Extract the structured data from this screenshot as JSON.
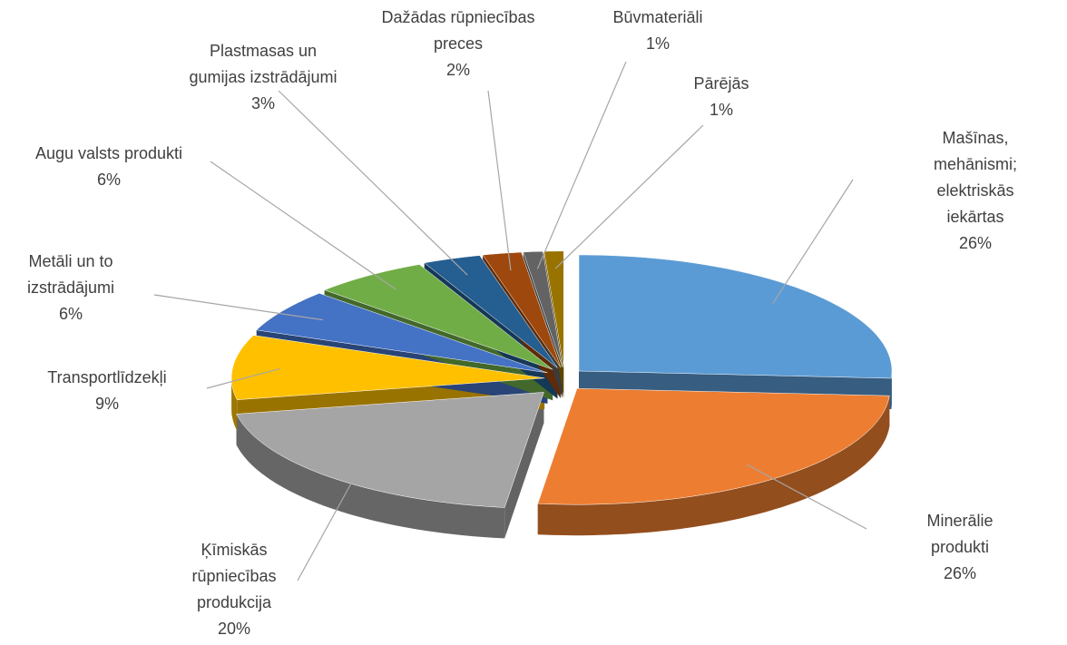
{
  "chart_data": {
    "type": "pie3d",
    "categories": [
      "Mašīnas,\nmehānismi;\nelektriskās iekārtas",
      "Minerālie produkti",
      "Ķīmiskās\nrūpniecības\nprodukcija",
      "Transportlīdzekļi",
      "Metāli un to\nizstrādājumi",
      "Augu valsts produkti",
      "Plastmasas un\ngumijas izstrādājumi",
      "Dažādas rūpniecības\npreces",
      "Būvmateriāli",
      "Pārējās"
    ],
    "values": [
      26,
      26,
      20,
      9,
      6,
      6,
      3,
      2,
      1,
      1
    ],
    "value_labels": [
      "26%",
      "26%",
      "20%",
      "9%",
      "6%",
      "6%",
      "3%",
      "2%",
      "1%",
      "1%"
    ],
    "colors": [
      "#5b9bd5",
      "#ed7d31",
      "#a5a5a5",
      "#ffc000",
      "#4472c4",
      "#70ad47",
      "#255e91",
      "#9e480e",
      "#636363",
      "#997300"
    ]
  }
}
